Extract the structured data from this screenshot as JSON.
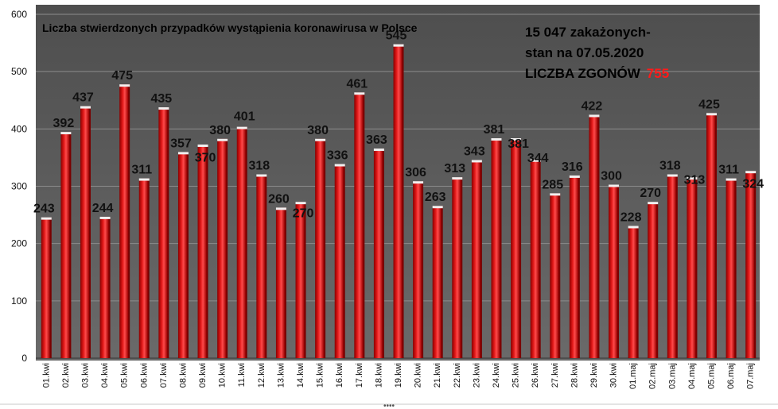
{
  "chart_data": {
    "type": "bar",
    "title": "Liczba stwierdzonych przypadków wystąpienia koronawirusa w Polsce",
    "xlabel": "",
    "ylabel": "",
    "ylim": [
      0,
      600
    ],
    "yticks": [
      "0",
      "100",
      "200",
      "300",
      "400",
      "500",
      "600"
    ],
    "grid": true,
    "categories": [
      "01.kwi",
      "02.kwi",
      "03.kwi",
      "04.kwi",
      "05.kwi",
      "06.kwi",
      "07.kwi",
      "08.kwi",
      "09.kwi",
      "10.kwi",
      "11.kwi",
      "12.kwi",
      "13.kwi",
      "14.kwi",
      "15.kwi",
      "16.kwi",
      "17.kwi",
      "18.kwi",
      "19.kwi",
      "20.kwi",
      "21.kwi",
      "22.kwi",
      "23.kwi",
      "24.kwi",
      "25.kwi",
      "26.kwi",
      "27.kwi",
      "28.kwi",
      "29.kwi",
      "30.kwi",
      "01.maj",
      "02.maj",
      "03.maj",
      "04.maj",
      "05.maj",
      "06.maj",
      "07.maj"
    ],
    "values": [
      243,
      392,
      437,
      244,
      475,
      311,
      435,
      357,
      370,
      380,
      401,
      318,
      260,
      270,
      380,
      336,
      461,
      363,
      545,
      306,
      263,
      313,
      343,
      381,
      381,
      344,
      285,
      316,
      422,
      300,
      228,
      270,
      318,
      313,
      425,
      311,
      324
    ],
    "annotation": {
      "line1": "15 047 zakażonych-",
      "line2": "stan na 07.05.2020",
      "line3_prefix": "LICZBA ZGONÓW",
      "line3_value": "755"
    },
    "colors": {
      "plot_background": "#5a5a5a",
      "bar": "#c00000",
      "bar_highlight": "#ff3c3c",
      "bar_shadow": "#7a0000",
      "annotation_accent": "#ff1a1a"
    }
  }
}
